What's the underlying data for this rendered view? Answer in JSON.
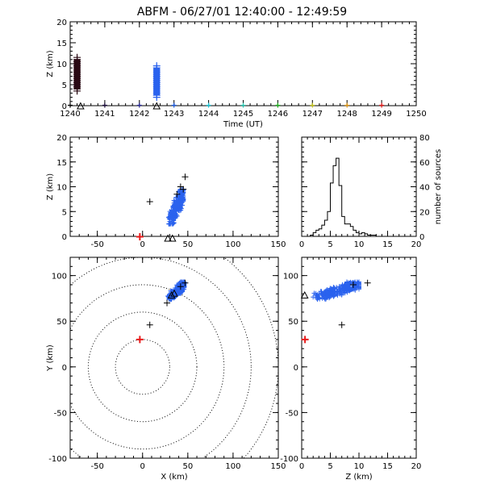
{
  "title": "ABFM - 06/27/01 12:40:00 - 12:49:59",
  "chart_data": [
    {
      "id": "time_height",
      "type": "scatter",
      "xlabel": "Time (UT)",
      "ylabel": "Z (km)",
      "xlim": [
        1240,
        1250
      ],
      "ylim": [
        0,
        20
      ],
      "xticks": [
        "1240",
        "1241",
        "1242",
        "1243",
        "1244",
        "1245",
        "1246",
        "1247",
        "1248",
        "1249",
        "1250"
      ],
      "yticks": [
        "0",
        "5",
        "10",
        "15",
        "20"
      ],
      "clusters": [
        {
          "t": 1240.2,
          "zmin": 3.5,
          "zmax": 11.5,
          "color": "#2a0a14"
        },
        {
          "t": 1242.5,
          "zmin": 2.0,
          "zmax": 9.5,
          "color": "#2a62ee"
        }
      ],
      "station_marks": [
        {
          "t": 1240.0,
          "color": "#000000"
        },
        {
          "t": 1241.0,
          "color": "#1a0a3a"
        },
        {
          "t": 1242.0,
          "color": "#2a2a9a"
        },
        {
          "t": 1243.0,
          "color": "#1f5fe8"
        },
        {
          "t": 1244.0,
          "color": "#19c8d8"
        },
        {
          "t": 1245.0,
          "color": "#22c7b0"
        },
        {
          "t": 1246.0,
          "color": "#1fb21f"
        },
        {
          "t": 1247.0,
          "color": "#c8c81a"
        },
        {
          "t": 1248.0,
          "color": "#e89a12"
        },
        {
          "t": 1249.0,
          "color": "#e81a1a"
        }
      ],
      "stations": [
        {
          "t": 1240.3,
          "z": 0
        },
        {
          "t": 1242.5,
          "z": 0
        }
      ]
    },
    {
      "id": "x_z",
      "type": "scatter",
      "xlim": [
        -80,
        150
      ],
      "ylim": [
        0,
        20
      ],
      "xticks": [
        "-50",
        "0",
        "50",
        "100",
        "150"
      ],
      "yticks": [
        "0",
        "5",
        "10",
        "15",
        "20"
      ],
      "ylabel": "Z (km)",
      "points": [
        {
          "x": 8,
          "y": 7,
          "color": "#000000"
        },
        {
          "x": 47,
          "y": 12,
          "color": "#000000"
        },
        {
          "x": 42,
          "y": 10,
          "color": "#000000"
        },
        {
          "x": 45,
          "y": 9.5,
          "color": "#000000"
        },
        {
          "x": 38,
          "y": 8.5,
          "color": "#000000"
        }
      ],
      "blue_cloud": {
        "x": [
          28,
          45
        ],
        "y": [
          2.5,
          9.5
        ],
        "color": "#2a62ee"
      },
      "stations": [
        {
          "x": 28,
          "y": -0.5
        },
        {
          "x": 33,
          "y": -0.5
        }
      ],
      "origin": {
        "x": -3,
        "y": 0,
        "color": "#e81a1a"
      }
    },
    {
      "id": "histogram",
      "type": "bar",
      "xlim": [
        0,
        20
      ],
      "ylim": [
        0,
        80
      ],
      "xticks": [
        "0",
        "5",
        "10",
        "15",
        "20"
      ],
      "yticks": [
        "0",
        "20",
        "40",
        "60",
        "80"
      ],
      "ylabel": "number of sources",
      "bin_edges": [
        0,
        0.5,
        1,
        1.5,
        2,
        2.5,
        3,
        3.5,
        4,
        4.5,
        5,
        5.5,
        6,
        6.5,
        7,
        7.5,
        8,
        8.5,
        9,
        9.5,
        10,
        10.5,
        11,
        11.5,
        12,
        12.5,
        13,
        13.5,
        14,
        14.5,
        15,
        15.5,
        16,
        16.5,
        17,
        17.5,
        18,
        18.5,
        19,
        19.5,
        20
      ],
      "counts": [
        0,
        0,
        0,
        1,
        3,
        5,
        6,
        9,
        13,
        20,
        43,
        57,
        63,
        41,
        16,
        10,
        10,
        8,
        5,
        3,
        2,
        3,
        2,
        1,
        1,
        1,
        0,
        0,
        0,
        0,
        0,
        0,
        0,
        0,
        0,
        0,
        0,
        0,
        0,
        0
      ]
    },
    {
      "id": "x_y",
      "type": "scatter",
      "xlabel": "X (km)",
      "ylabel": "Y (km)",
      "xlim": [
        -80,
        150
      ],
      "ylim": [
        -100,
        120
      ],
      "xticks": [
        "-50",
        "0",
        "50",
        "100",
        "150"
      ],
      "yticks": [
        "-100",
        "-50",
        "0",
        "50",
        "100"
      ],
      "range_rings_km": [
        30,
        60,
        90,
        120,
        150
      ],
      "ring_center": {
        "x": 0,
        "y": 0
      },
      "points": [
        {
          "x": 8,
          "y": 46,
          "color": "#000000"
        },
        {
          "x": 47,
          "y": 92,
          "color": "#000000"
        },
        {
          "x": 42,
          "y": 88,
          "color": "#000000"
        },
        {
          "x": 27,
          "y": 70,
          "color": "#000000"
        }
      ],
      "blue_cloud": {
        "x": [
          28,
          46
        ],
        "y": [
          74,
          93
        ],
        "color": "#2a62ee"
      },
      "stations": [
        {
          "x": 32,
          "y": 78
        },
        {
          "x": 35,
          "y": 80
        }
      ],
      "origin": {
        "x": -3,
        "y": 30,
        "color": "#e81a1a"
      }
    },
    {
      "id": "z_y",
      "type": "scatter",
      "xlabel": "Z (km)",
      "xlim": [
        0,
        20
      ],
      "ylim": [
        -100,
        120
      ],
      "xticks": [
        "0",
        "5",
        "10",
        "15",
        "20"
      ],
      "yticks": [
        "-100",
        "-50",
        "0",
        "50",
        "100"
      ],
      "points": [
        {
          "x": 7,
          "y": 46,
          "color": "#000000"
        },
        {
          "x": 11.5,
          "y": 92,
          "color": "#000000"
        },
        {
          "x": 9,
          "y": 90,
          "color": "#000000"
        }
      ],
      "blue_cloud": {
        "x": [
          1.5,
          10
        ],
        "y": [
          74,
          93
        ],
        "color": "#2a62ee"
      },
      "stations": [
        {
          "x": 0.1,
          "y": 78
        }
      ],
      "origin": {
        "x": 0.3,
        "y": 30,
        "color": "#e81a1a"
      }
    }
  ]
}
